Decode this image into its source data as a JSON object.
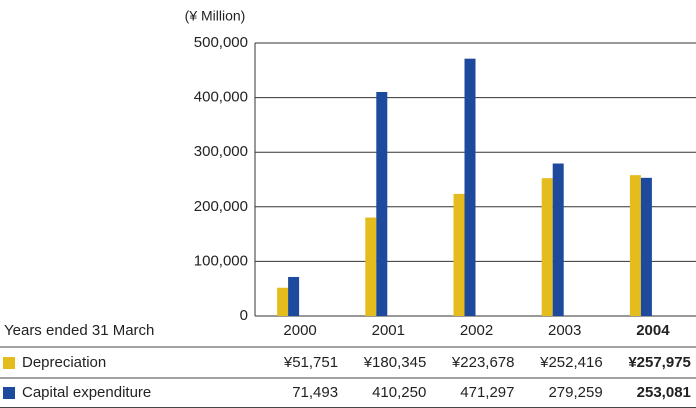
{
  "chart_data": {
    "type": "bar",
    "unit_label": "(¥ Million)",
    "table_header": "Years ended 31 March",
    "categories": [
      "2000",
      "2001",
      "2002",
      "2003",
      "2004"
    ],
    "series": [
      {
        "name": "Depreciation",
        "color": "#e4bc1e",
        "values": [
          51751,
          180345,
          223678,
          252416,
          257975
        ],
        "value_labels": [
          "¥51,751",
          "¥180,345",
          "¥223,678",
          "¥252,416",
          "¥257,975"
        ]
      },
      {
        "name": "Capital expenditure",
        "color": "#1d4a9c",
        "values": [
          71493,
          410250,
          471297,
          279259,
          253081
        ],
        "value_labels": [
          "71,493",
          "410,250",
          "471,297",
          "279,259",
          "253,081"
        ]
      }
    ],
    "ylim": [
      0,
      500000
    ],
    "yticks": [
      0,
      {
        "value": 100000,
        "label": "100,000"
      },
      {
        "value": 200000,
        "label": "200,000"
      },
      {
        "value": 300000,
        "label": "300,000"
      },
      {
        "value": 400000,
        "label": "400,000"
      },
      {
        "value": 500000,
        "label": "500,000"
      }
    ],
    "grid": true
  }
}
